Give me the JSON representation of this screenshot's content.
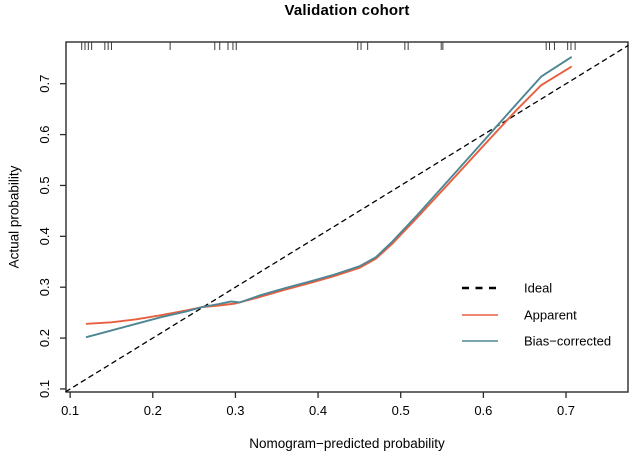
{
  "chart_data": {
    "type": "line",
    "title": "Validation cohort",
    "xlabel": "Nomogram−predicted probability",
    "ylabel": "Actual probability",
    "xlim": [
      0.095,
      0.775
    ],
    "ylim": [
      0.094,
      0.782
    ],
    "x_ticks": [
      "0.1",
      "0.2",
      "0.3",
      "0.4",
      "0.5",
      "0.6",
      "0.7"
    ],
    "y_ticks": [
      "0.1",
      "0.2",
      "0.3",
      "0.4",
      "0.5",
      "0.6",
      "0.7"
    ],
    "grid": false,
    "legend_position": "bottom-right",
    "colors": {
      "ideal": "#000000",
      "apparent": "#E85F40",
      "bias_corrected": "#4E8694",
      "rug": "#3a3a3a",
      "box": "#2b2b2b"
    },
    "series": [
      {
        "name": "Ideal",
        "style": "dashed",
        "color": "#000000",
        "points": [
          [
            0.095,
            0.095
          ],
          [
            0.775,
            0.775
          ]
        ]
      },
      {
        "name": "Apparent",
        "style": "solid",
        "color": "#E85F40",
        "points": [
          [
            0.12,
            0.228
          ],
          [
            0.15,
            0.231
          ],
          [
            0.18,
            0.237
          ],
          [
            0.21,
            0.245
          ],
          [
            0.24,
            0.254
          ],
          [
            0.26,
            0.261
          ],
          [
            0.28,
            0.264
          ],
          [
            0.3,
            0.268
          ],
          [
            0.33,
            0.281
          ],
          [
            0.36,
            0.295
          ],
          [
            0.39,
            0.308
          ],
          [
            0.42,
            0.322
          ],
          [
            0.45,
            0.338
          ],
          [
            0.47,
            0.356
          ],
          [
            0.49,
            0.386
          ],
          [
            0.52,
            0.437
          ],
          [
            0.56,
            0.507
          ],
          [
            0.6,
            0.578
          ],
          [
            0.64,
            0.648
          ],
          [
            0.67,
            0.697
          ],
          [
            0.706,
            0.733
          ]
        ]
      },
      {
        "name": "Bias−corrected",
        "style": "solid",
        "color": "#4E8694",
        "points": [
          [
            0.12,
            0.202
          ],
          [
            0.15,
            0.215
          ],
          [
            0.18,
            0.228
          ],
          [
            0.21,
            0.241
          ],
          [
            0.24,
            0.252
          ],
          [
            0.26,
            0.261
          ],
          [
            0.28,
            0.267
          ],
          [
            0.295,
            0.272
          ],
          [
            0.305,
            0.27
          ],
          [
            0.33,
            0.284
          ],
          [
            0.36,
            0.298
          ],
          [
            0.39,
            0.311
          ],
          [
            0.42,
            0.325
          ],
          [
            0.45,
            0.341
          ],
          [
            0.47,
            0.359
          ],
          [
            0.49,
            0.39
          ],
          [
            0.52,
            0.442
          ],
          [
            0.56,
            0.514
          ],
          [
            0.6,
            0.587
          ],
          [
            0.64,
            0.66
          ],
          [
            0.67,
            0.714
          ],
          [
            0.706,
            0.752
          ]
        ]
      }
    ],
    "rug_x": [
      0.114,
      0.118,
      0.122,
      0.126,
      0.142,
      0.146,
      0.15,
      0.221,
      0.275,
      0.281,
      0.291,
      0.297,
      0.301,
      0.448,
      0.452,
      0.46,
      0.505,
      0.509,
      0.549,
      0.551,
      0.676,
      0.68,
      0.686,
      0.702,
      0.706,
      0.711
    ],
    "legend": [
      "Ideal",
      "Apparent",
      "Bias−corrected"
    ]
  }
}
